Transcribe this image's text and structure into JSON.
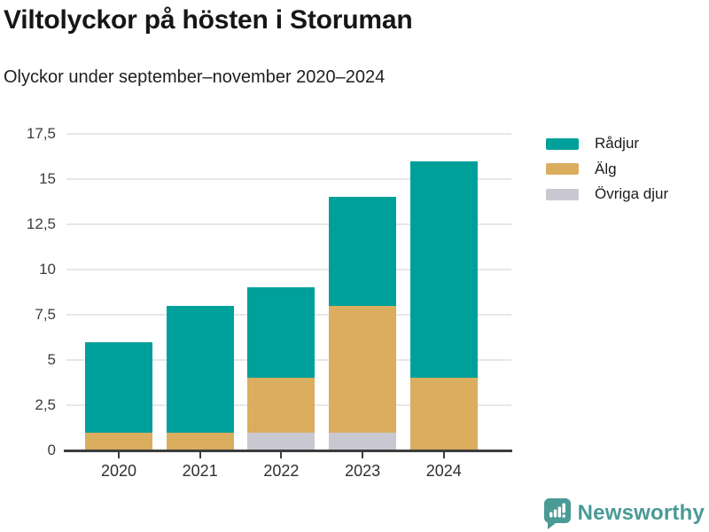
{
  "header": {
    "title": "Viltolyckor på hösten i Storuman",
    "subtitle": "Olyckor under september–november 2020–2024"
  },
  "chart_data": {
    "type": "bar",
    "stacked": true,
    "title": "Viltolyckor på hösten i Storuman",
    "subtitle": "Olyckor under september–november 2020–2024",
    "categories": [
      "2020",
      "2021",
      "2022",
      "2023",
      "2024"
    ],
    "series": [
      {
        "name": "Rådjur",
        "slug": "radjur",
        "color": "#00A09A",
        "values": [
          5,
          7,
          5,
          6,
          12
        ]
      },
      {
        "name": "Älg",
        "slug": "alg",
        "color": "#DAAD5F",
        "values": [
          1,
          1,
          3,
          7,
          4
        ]
      },
      {
        "name": "Övriga djur",
        "slug": "ovriga-djur",
        "color": "#C9C8D2",
        "values": [
          0,
          0,
          1,
          1,
          0
        ]
      }
    ],
    "stack_order_bottom_to_top": [
      "Övriga djur",
      "Älg",
      "Rådjur"
    ],
    "totals": [
      6,
      8,
      9,
      14,
      16
    ],
    "xlabel": "",
    "ylabel": "",
    "ylim": [
      0,
      17.5
    ],
    "ytick_step": 2.5,
    "ytick_labels": [
      "0",
      "2,5",
      "5",
      "7,5",
      "10",
      "12,5",
      "15",
      "17,5"
    ],
    "grid": true,
    "legend_position": "top-right"
  },
  "colors": {
    "grid": "#e7e7e9",
    "axis": "#3d3d3d",
    "brand_teal": "#4a9a96"
  },
  "footer": {
    "brand": "Newsworthy"
  }
}
